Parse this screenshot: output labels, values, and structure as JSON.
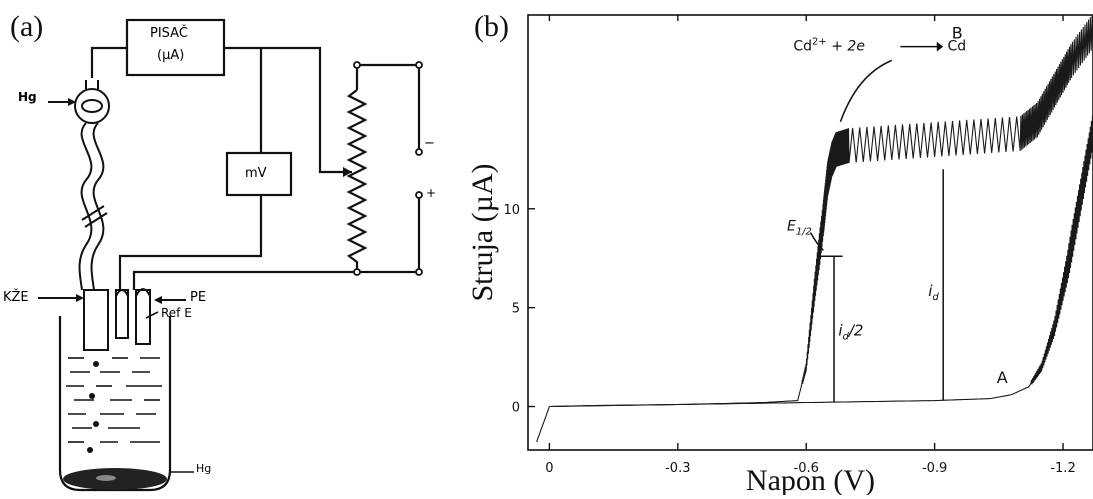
{
  "panel_a": {
    "label": "(a)",
    "recorder_label_1": "PISAČ",
    "recorder_label_2": "(µA)",
    "mv_label": "mV",
    "hg_label_top": "Hg",
    "hg_label_bottom": "Hg",
    "kze_label": "KŽE",
    "pe_label": "PE",
    "ref_label": "Ref E",
    "minus_label": "−",
    "plus_label": "+"
  },
  "panel_b": {
    "label": "(b)",
    "reaction_prefix": "Cd",
    "reaction_charge": "2+",
    "reaction_middle": " + 2e",
    "reaction_product": "Cd",
    "label_B": "B",
    "label_A": "A",
    "e_half_main": "E",
    "e_half_sub": "1/2",
    "id_label": "i",
    "id_sub": "d",
    "id_half_label": "i",
    "id_half_sub": "d",
    "id_half_suffix": "/2"
  },
  "chart_data": {
    "type": "line",
    "xlabel": "Napon (V)",
    "ylabel": "Struja (µA)",
    "x_ticks": [
      0,
      -0.3,
      -0.6,
      -0.9,
      -1.2
    ],
    "x_tick_labels": [
      "0",
      "-0.3",
      "-0.6",
      "-0.9",
      "-1.2"
    ],
    "y_ticks": [
      0,
      5,
      10
    ],
    "y_tick_labels": [
      "0",
      "5",
      "10"
    ],
    "xlim": [
      0.05,
      -1.27
    ],
    "ylim": [
      -2.2,
      19.8
    ],
    "grid": false,
    "series": [
      {
        "label": "B",
        "x": [
          0.03,
          0.0,
          -0.1,
          -0.3,
          -0.5,
          -0.58,
          -0.6,
          -0.62,
          -0.64,
          -0.65,
          -0.66,
          -0.67,
          -0.7,
          -0.9,
          -1.1,
          -1.14,
          -1.18,
          -1.22,
          -1.27
        ],
        "y": [
          -1.8,
          0.0,
          0.05,
          0.1,
          0.2,
          0.3,
          2.0,
          6.0,
          9.5,
          11.5,
          12.5,
          13.0,
          13.2,
          13.5,
          13.8,
          14.5,
          16.0,
          17.5,
          19.0
        ]
      },
      {
        "label": "A",
        "x": [
          0.0,
          -0.3,
          -0.6,
          -0.9,
          -1.03,
          -1.08,
          -1.12,
          -1.15,
          -1.18,
          -1.21,
          -1.24,
          -1.27
        ],
        "y": [
          0.0,
          0.1,
          0.2,
          0.3,
          0.4,
          0.6,
          1.0,
          2.0,
          4.0,
          7.0,
          10.5,
          14.0
        ]
      }
    ]
  }
}
